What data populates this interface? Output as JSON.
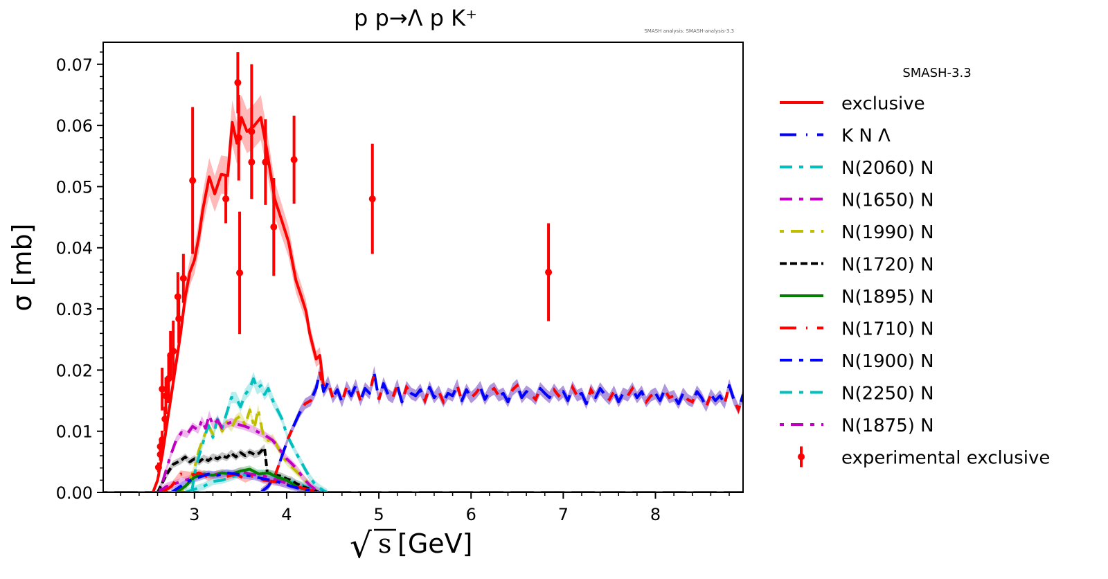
{
  "chart_data": {
    "type": "line",
    "title": "p p→Λ p K⁺",
    "watermark": "SMASH analysis: SMASH-analysis-3.3",
    "xlabel": "[GeV]",
    "xlabel_symbol": "√s",
    "ylabel": "σ [mb]",
    "xlim": [
      2.01,
      8.95
    ],
    "ylim": [
      0,
      0.0736
    ],
    "x_ticks": [
      3,
      4,
      5,
      6,
      7,
      8
    ],
    "x_tick_labels": [
      "3",
      "4",
      "5",
      "6",
      "7",
      "8"
    ],
    "y_ticks": [
      0,
      0.01,
      0.02,
      0.03,
      0.04,
      0.05,
      0.06,
      0.07
    ],
    "y_tick_labels": [
      "0.00",
      "0.01",
      "0.02",
      "0.03",
      "0.04",
      "0.05",
      "0.06",
      "0.07"
    ],
    "grid": false,
    "legend": {
      "title": "SMASH-3.3",
      "placement": "outside-right"
    },
    "series": [
      {
        "name": "exclusive",
        "color": "#ff0000",
        "dash": "solid",
        "band": "#ff8080",
        "x": [
          2.55,
          2.6,
          2.65,
          2.7,
          2.75,
          2.8,
          2.85,
          2.9,
          2.95,
          3.0,
          3.05,
          3.09,
          3.16,
          3.22,
          3.29,
          3.36,
          3.41,
          3.46,
          3.51,
          3.57,
          3.64,
          3.72,
          3.78,
          3.87,
          3.95,
          4.02,
          4.1,
          4.16,
          4.21,
          4.25,
          4.32,
          4.36,
          4.4
        ],
        "y": [
          0.0,
          0.002,
          0.006,
          0.011,
          0.016,
          0.021,
          0.026,
          0.032,
          0.036,
          0.038,
          0.042,
          0.0462,
          0.0516,
          0.0488,
          0.052,
          0.0518,
          0.0605,
          0.0571,
          0.0613,
          0.059,
          0.0598,
          0.0613,
          0.0564,
          0.048,
          0.0443,
          0.041,
          0.0347,
          0.032,
          0.0296,
          0.026,
          0.0218,
          0.0224,
          0.0174
        ]
      },
      {
        "name": "K N Λ",
        "color": "#0000ff",
        "dash": "longdash-dot",
        "band": "#6f3fbf",
        "x": [
          3.72,
          3.8,
          3.88,
          3.95,
          4.02,
          4.08,
          4.14,
          4.2,
          4.26,
          4.32,
          4.36,
          4.4,
          4.45,
          4.5,
          4.55,
          4.6,
          4.65,
          4.7,
          4.75,
          4.8,
          4.85,
          4.9,
          4.95,
          5.0,
          5.05,
          5.1,
          5.15,
          5.2,
          5.25,
          5.3,
          5.35,
          5.4,
          5.45,
          5.5,
          5.55,
          5.6,
          5.65,
          5.7,
          5.75,
          5.8,
          5.85,
          5.9,
          5.95,
          6.0,
          6.05,
          6.1,
          6.15,
          6.2,
          6.25,
          6.3,
          6.35,
          6.4,
          6.45,
          6.5,
          6.55,
          6.6,
          6.65,
          6.7,
          6.75,
          6.8,
          6.85,
          6.9,
          6.95,
          7.0,
          7.05,
          7.1,
          7.15,
          7.2,
          7.25,
          7.3,
          7.35,
          7.4,
          7.45,
          7.5,
          7.55,
          7.6,
          7.65,
          7.7,
          7.75,
          7.8,
          7.85,
          7.9,
          7.95,
          8.0,
          8.05,
          8.1,
          8.15,
          8.2,
          8.25,
          8.3,
          8.35,
          8.4,
          8.45,
          8.5,
          8.55,
          8.6,
          8.65,
          8.7,
          8.75,
          8.8,
          8.85,
          8.9,
          8.95
        ],
        "y": [
          0.0,
          0.001,
          0.003,
          0.006,
          0.009,
          0.011,
          0.013,
          0.0145,
          0.015,
          0.017,
          0.0197,
          0.0165,
          0.018,
          0.0155,
          0.0168,
          0.0148,
          0.0172,
          0.0158,
          0.0175,
          0.015,
          0.017,
          0.0162,
          0.0195,
          0.0152,
          0.0178,
          0.016,
          0.0155,
          0.0175,
          0.0148,
          0.0172,
          0.0162,
          0.0158,
          0.0168,
          0.015,
          0.0172,
          0.0155,
          0.0165,
          0.0148,
          0.0162,
          0.0158,
          0.0175,
          0.015,
          0.0168,
          0.0155,
          0.0162,
          0.0172,
          0.0152,
          0.0165,
          0.017,
          0.0158,
          0.0162,
          0.0148,
          0.0168,
          0.0175,
          0.0155,
          0.0165,
          0.016,
          0.0152,
          0.017,
          0.0162,
          0.0155,
          0.0168,
          0.0158,
          0.0165,
          0.015,
          0.0172,
          0.0158,
          0.0162,
          0.0145,
          0.0168,
          0.0155,
          0.017,
          0.016,
          0.0152,
          0.0165,
          0.0148,
          0.0162,
          0.0158,
          0.017,
          0.0155,
          0.0165,
          0.0148,
          0.0158,
          0.0162,
          0.015,
          0.0168,
          0.0155,
          0.0158,
          0.0145,
          0.0162,
          0.0152,
          0.0148,
          0.0165,
          0.0155,
          0.014,
          0.016,
          0.015,
          0.0158,
          0.0145,
          0.0175,
          0.0152,
          0.0135,
          0.016
        ]
      },
      {
        "name": "N(2060) N",
        "color": "#00bfbf",
        "dash": "dash-dot",
        "band": "#80dfdf",
        "x": [
          2.9,
          3.0,
          3.1,
          3.2,
          3.3,
          3.4,
          3.5,
          3.6,
          3.7,
          3.8,
          3.9,
          4.0,
          4.1,
          4.2,
          4.3,
          4.4
        ],
        "y": [
          0.0,
          0.0005,
          0.001,
          0.0018,
          0.002,
          0.0025,
          0.003,
          0.0028,
          0.0032,
          0.003,
          0.0025,
          0.002,
          0.0015,
          0.001,
          0.0005,
          0.0
        ]
      },
      {
        "name": "N(1650) N",
        "color": "#bf00bf",
        "dash": "dash-dot",
        "band": "#df80df",
        "x": [
          2.6,
          2.7,
          2.8,
          2.9,
          3.0,
          3.1,
          3.2,
          3.3,
          3.4,
          3.5,
          3.6,
          3.7,
          3.8,
          3.9,
          4.0,
          4.1,
          4.2,
          4.3
        ],
        "y": [
          0.0,
          0.001,
          0.0015,
          0.002,
          0.0025,
          0.003,
          0.0028,
          0.0032,
          0.003,
          0.0035,
          0.003,
          0.0028,
          0.0025,
          0.002,
          0.0015,
          0.001,
          0.0005,
          0.0
        ]
      },
      {
        "name": "N(1990) N",
        "color": "#bfbf00",
        "dash": "dot-longdash",
        "band": "#dfdf80",
        "x": [
          2.85,
          2.95,
          3.0,
          3.05,
          3.1,
          3.15,
          3.2,
          3.25,
          3.3,
          3.35,
          3.4,
          3.45,
          3.5,
          3.55,
          3.6,
          3.65,
          3.69,
          3.75,
          3.8,
          3.85,
          3.9,
          3.95,
          4.0,
          4.1,
          4.2,
          4.3,
          4.35
        ],
        "y": [
          0.0,
          0.002,
          0.004,
          0.007,
          0.009,
          0.011,
          0.0095,
          0.012,
          0.01,
          0.0115,
          0.0105,
          0.012,
          0.0125,
          0.011,
          0.0135,
          0.0105,
          0.0136,
          0.009,
          0.0085,
          0.009,
          0.0075,
          0.006,
          0.005,
          0.0035,
          0.002,
          0.0005,
          0.0
        ]
      },
      {
        "name": "N(1720) N",
        "color": "#000000",
        "dash": "dashed",
        "band": "#999999",
        "x": [
          2.6,
          2.7,
          2.77,
          2.85,
          2.9,
          2.95,
          3.0,
          3.05,
          3.1,
          3.15,
          3.2,
          3.25,
          3.3,
          3.35,
          3.4,
          3.45,
          3.5,
          3.55,
          3.6,
          3.65,
          3.7,
          3.76,
          3.79,
          3.85,
          3.9,
          3.95,
          4.0,
          4.05,
          4.1,
          4.2,
          4.3,
          4.35
        ],
        "y": [
          0.0,
          0.003,
          0.0046,
          0.0052,
          0.0058,
          0.005,
          0.0055,
          0.005,
          0.0056,
          0.0052,
          0.0058,
          0.0055,
          0.006,
          0.0057,
          0.0064,
          0.0058,
          0.0065,
          0.006,
          0.0066,
          0.0062,
          0.0064,
          0.0073,
          0.0032,
          0.003,
          0.0028,
          0.0026,
          0.0022,
          0.002,
          0.0015,
          0.0008,
          0.0004,
          0.0
        ]
      },
      {
        "name": "N(1895) N",
        "color": "#007f00",
        "dash": "solid",
        "band": "#80bf80",
        "x": [
          2.8,
          2.9,
          3.0,
          3.1,
          3.2,
          3.3,
          3.4,
          3.5,
          3.6,
          3.7,
          3.8,
          3.9,
          4.0,
          4.1,
          4.2,
          4.3
        ],
        "y": [
          0.0,
          0.001,
          0.0025,
          0.003,
          0.0028,
          0.0032,
          0.003,
          0.0035,
          0.0038,
          0.003,
          0.0032,
          0.0025,
          0.002,
          0.001,
          0.0005,
          0.0
        ]
      },
      {
        "name": "N(1710) N",
        "color": "#ff0000",
        "dash": "longdash-dot",
        "band": "#ff8080",
        "x": [
          2.65,
          2.75,
          2.85,
          2.95,
          3.05,
          3.15,
          3.25,
          3.35,
          3.45,
          3.55,
          3.65,
          3.75,
          3.85,
          3.95,
          4.05,
          4.15,
          4.25,
          4.35
        ],
        "y": [
          0.0,
          0.001,
          0.003,
          0.0028,
          0.0032,
          0.0025,
          0.003,
          0.0026,
          0.003,
          0.0022,
          0.0028,
          0.002,
          0.0018,
          0.0015,
          0.0012,
          0.0008,
          0.0004,
          0.0
        ]
      },
      {
        "name": "N(1900) N",
        "color": "#0000ff",
        "dash": "dash-dot",
        "band": "#8080ff",
        "x": [
          2.75,
          2.85,
          2.95,
          3.05,
          3.15,
          3.25,
          3.35,
          3.45,
          3.55,
          3.65,
          3.75,
          3.85,
          3.95,
          4.05,
          4.15,
          4.25,
          4.35
        ],
        "y": [
          0.0,
          0.001,
          0.002,
          0.0025,
          0.003,
          0.0028,
          0.0032,
          0.003,
          0.0028,
          0.0026,
          0.0022,
          0.002,
          0.0015,
          0.001,
          0.0006,
          0.0003,
          0.0
        ]
      },
      {
        "name": "N(2250) N",
        "color": "#00bfbf",
        "dash": "dash-dot",
        "band": "#80dfdf",
        "x": [
          2.97,
          3.0,
          3.05,
          3.1,
          3.15,
          3.2,
          3.25,
          3.3,
          3.35,
          3.4,
          3.45,
          3.5,
          3.55,
          3.6,
          3.64,
          3.68,
          3.72,
          3.76,
          3.8,
          3.85,
          3.9,
          3.95,
          4.0,
          4.05,
          4.1,
          4.15,
          4.2,
          4.25,
          4.3,
          4.35,
          4.4,
          4.44
        ],
        "y": [
          0.0,
          0.003,
          0.006,
          0.0085,
          0.011,
          0.009,
          0.012,
          0.0105,
          0.013,
          0.0155,
          0.0155,
          0.014,
          0.016,
          0.017,
          0.0186,
          0.017,
          0.0175,
          0.016,
          0.017,
          0.015,
          0.0135,
          0.012,
          0.0095,
          0.008,
          0.0065,
          0.0052,
          0.0038,
          0.0025,
          0.0015,
          0.0008,
          0.0003,
          0.0
        ]
      },
      {
        "name": "N(1875) N",
        "color": "#bf00bf",
        "dash": "dot-longdash",
        "band": "#df80df",
        "x": [
          2.62,
          2.68,
          2.74,
          2.8,
          2.86,
          2.92,
          2.98,
          3.04,
          3.08,
          3.12,
          3.16,
          3.2,
          3.25,
          3.3,
          3.35,
          3.4,
          3.45,
          3.5,
          3.55,
          3.6,
          3.65,
          3.7,
          3.75,
          3.8,
          3.85,
          3.9,
          3.95,
          4.0,
          4.05,
          4.1,
          4.15,
          4.2,
          4.25,
          4.3,
          4.35,
          4.4
        ],
        "y": [
          0.0,
          0.003,
          0.006,
          0.0085,
          0.0098,
          0.0095,
          0.0108,
          0.0102,
          0.0118,
          0.0105,
          0.0126,
          0.011,
          0.0118,
          0.0105,
          0.0112,
          0.0115,
          0.0112,
          0.011,
          0.0108,
          0.0105,
          0.0102,
          0.0098,
          0.0095,
          0.009,
          0.0085,
          0.0075,
          0.0065,
          0.0055,
          0.0048,
          0.004,
          0.003,
          0.002,
          0.0012,
          0.0006,
          0.0002,
          0.0
        ]
      }
    ],
    "experimental": {
      "name": "experimental exclusive",
      "color": "#ff0000",
      "points": [
        {
          "x": 2.61,
          "y": 0.0041,
          "err": 0.0008
        },
        {
          "x": 2.63,
          "y": 0.0062,
          "err": 0.001
        },
        {
          "x": 2.63,
          "y": 0.0075,
          "err": 0.0012
        },
        {
          "x": 2.65,
          "y": 0.0086,
          "err": 0.0015
        },
        {
          "x": 2.65,
          "y": 0.0169,
          "err": 0.0035
        },
        {
          "x": 2.68,
          "y": 0.012,
          "err": 0.002
        },
        {
          "x": 2.69,
          "y": 0.0158,
          "err": 0.003
        },
        {
          "x": 2.72,
          "y": 0.0186,
          "err": 0.004
        },
        {
          "x": 2.74,
          "y": 0.0224,
          "err": 0.004
        },
        {
          "x": 2.77,
          "y": 0.0231,
          "err": 0.005
        },
        {
          "x": 2.82,
          "y": 0.032,
          "err": 0.004
        },
        {
          "x": 2.83,
          "y": 0.0284,
          "err": 0.004
        },
        {
          "x": 2.88,
          "y": 0.035,
          "err": 0.004
        },
        {
          "x": 2.98,
          "y": 0.051,
          "err": 0.012
        },
        {
          "x": 3.34,
          "y": 0.048,
          "err": 0.004
        },
        {
          "x": 3.47,
          "y": 0.067,
          "err": 0.005
        },
        {
          "x": 3.48,
          "y": 0.058,
          "err": 0.007
        },
        {
          "x": 3.49,
          "y": 0.0359,
          "err": 0.01
        },
        {
          "x": 3.62,
          "y": 0.059,
          "err": 0.011
        },
        {
          "x": 3.62,
          "y": 0.054,
          "err": 0.006
        },
        {
          "x": 3.77,
          "y": 0.054,
          "err": 0.007
        },
        {
          "x": 3.86,
          "y": 0.0434,
          "err": 0.008
        },
        {
          "x": 4.08,
          "y": 0.0544,
          "err": 0.0072
        },
        {
          "x": 4.93,
          "y": 0.048,
          "err": 0.009
        },
        {
          "x": 6.84,
          "y": 0.036,
          "err": 0.008
        }
      ]
    }
  }
}
